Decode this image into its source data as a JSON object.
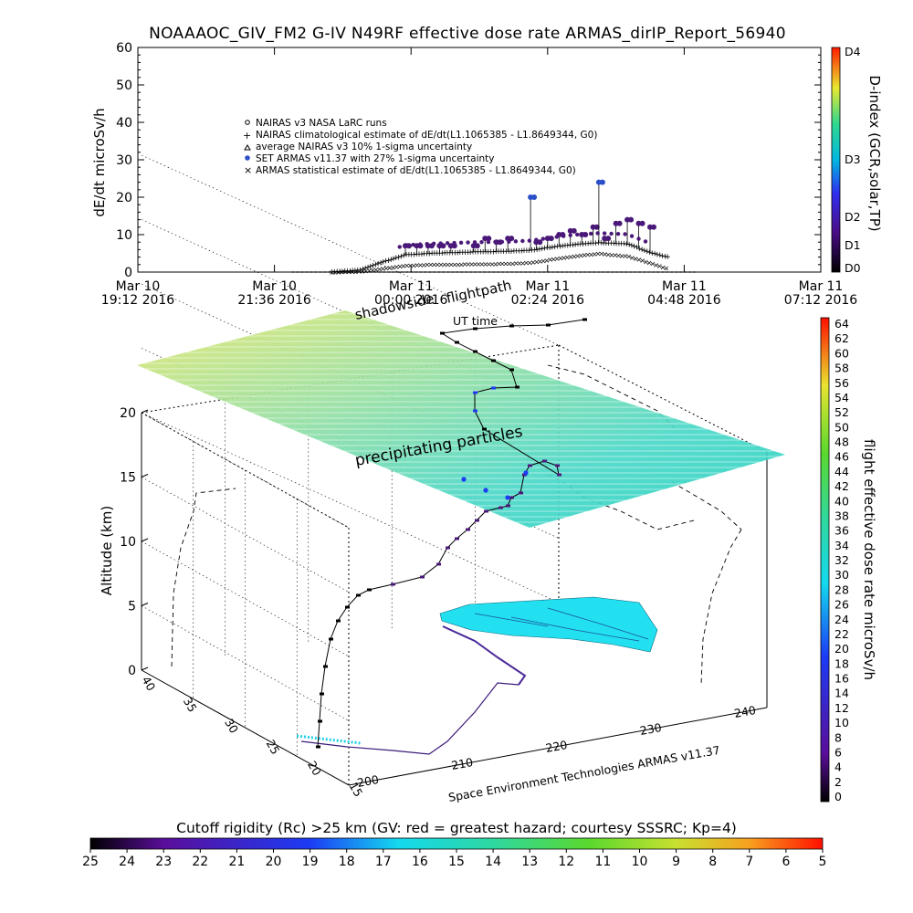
{
  "title": "NOAAAOC_GIV_FM2 G-IV    N49RF   effective dose rate ARMAS_dirIP_Report_56940",
  "colors": {
    "set_armas_marker": "#2a4fc8",
    "surface_shadow": "#22e0f0",
    "flight_path": "#000000"
  },
  "top_panel": {
    "ylabel": "dE/dt microSv/h",
    "legend": [
      "NAIRAS v3 NASA LaRC runs",
      "NAIRAS climatological estimate of dE/dt(L1.1065385 - L1.8649344, G0)",
      "average NAIRAS v3 10% 1-sigma uncertainty",
      "SET ARMAS v11.37 with 27% 1-sigma uncertainty",
      "ARMAS statistical estimate of dE/dt(L1.1065385 - L1.8649344, G0)"
    ],
    "legend_symbols": [
      "circle",
      "plus",
      "triangle",
      "filled-circle",
      "x"
    ],
    "dindex_label": "D-index (GCR,solar,TP)",
    "dindex_ticks": [
      "D4",
      "D3",
      "D2",
      "D1",
      "D0"
    ]
  },
  "chart_data": [
    {
      "type": "scatter",
      "title": "NOAAAOC_GIV_FM2 G-IV    N49RF   effective dose rate ARMAS_dirIP_Report_56940",
      "ylabel": "dE/dt microSv/h",
      "ylim": [
        0,
        60
      ],
      "yticks": [
        "0",
        "10",
        "20",
        "30",
        "40",
        "50",
        "60"
      ],
      "xticks": [
        {
          "l1": "Mar 10",
          "l2": "19:12 2016"
        },
        {
          "l1": "Mar 10",
          "l2": "21:36 2016"
        },
        {
          "l1": "Mar 11",
          "l2": "00:00 2016"
        },
        {
          "l1": "Mar 11",
          "l2": "02:24 2016"
        },
        {
          "l1": "Mar 11",
          "l2": "04:48 2016"
        },
        {
          "l1": "Mar 11",
          "l2": "07:12 2016"
        }
      ],
      "xlim_hours": [
        0,
        12
      ],
      "series": [
        {
          "name": "NAIRAS climatological estimate of dE/dt(L1.1065385 - L1.8649344, G0)",
          "x": [
            3.4,
            3.9,
            4.3,
            4.7,
            5.2,
            5.6,
            6.0,
            6.5,
            6.9,
            7.3,
            7.7,
            8.1,
            8.6,
            9.0,
            9.3
          ],
          "values": [
            0.1,
            0.6,
            2.8,
            4.7,
            5.1,
            5.3,
            5.5,
            5.6,
            5.9,
            6.8,
            7.5,
            7.9,
            7.6,
            5.2,
            4.1
          ]
        },
        {
          "name": "ARMAS statistical estimate of dE/dt(L1.1065385 - L1.8649344, G0)",
          "x": [
            3.4,
            3.9,
            4.3,
            4.7,
            5.2,
            5.6,
            6.0,
            6.5,
            6.9,
            7.3,
            7.7,
            8.1,
            8.6,
            9.0,
            9.3
          ],
          "values": [
            0.0,
            0.2,
            1.0,
            1.8,
            2.1,
            2.1,
            2.2,
            2.3,
            2.6,
            3.5,
            4.4,
            5.0,
            4.3,
            2.5,
            1.0
          ]
        },
        {
          "name": "SET ARMAS v11.37 with 27% 1-sigma uncertainty",
          "x": [
            4.7,
            4.9,
            5.1,
            5.3,
            5.5,
            5.9,
            6.1,
            6.3,
            6.5,
            6.9,
            7.0,
            7.2,
            7.4,
            7.6,
            7.8,
            8.0,
            8.1,
            8.2,
            8.4,
            8.6,
            8.8,
            9.0
          ],
          "values": [
            7,
            7,
            7,
            7,
            7,
            7,
            9,
            8,
            9,
            20,
            8,
            9,
            10,
            11,
            10,
            12,
            24,
            9,
            13,
            14,
            13,
            12
          ]
        }
      ]
    },
    {
      "type": "scatter",
      "title": "",
      "zlabel": "Altitude (km)",
      "zlim": [
        0,
        20
      ],
      "zticks": [
        "0",
        "5",
        "10",
        "15",
        "20"
      ],
      "latitude_ticks": [
        "40",
        "35",
        "30",
        "25",
        "20",
        "15"
      ],
      "longitude_ticks": [
        "200",
        "210",
        "220",
        "230",
        "240"
      ],
      "colorbar_label": "flight effective dose rate microSv/h",
      "colorbar_ticks": [
        "64",
        "62",
        "60",
        "58",
        "56",
        "54",
        "52",
        "50",
        "48",
        "46",
        "44",
        "42",
        "40",
        "38",
        "36",
        "34",
        "32",
        "30",
        "28",
        "26",
        "24",
        "22",
        "20",
        "18",
        "16",
        "14",
        "12",
        "10",
        "8",
        "6",
        "4",
        "2",
        "0"
      ],
      "annotations": [
        "shadowside",
        "flightpath",
        "UT time",
        "precipitating particles"
      ],
      "credit": "Space Environment Technologies ARMAS v11.37"
    },
    {
      "type": "heatmap",
      "title": "Cutoff rigidity (Rc) >25 km (GV: red = greatest hazard; courtesy SSSRC; Kp=4)",
      "colorbar_ticks": [
        "25",
        "24",
        "23",
        "22",
        "21",
        "20",
        "19",
        "18",
        "17",
        "16",
        "15",
        "14",
        "13",
        "12",
        "11",
        "10",
        "9",
        "8",
        "7",
        "6",
        "5"
      ]
    }
  ]
}
